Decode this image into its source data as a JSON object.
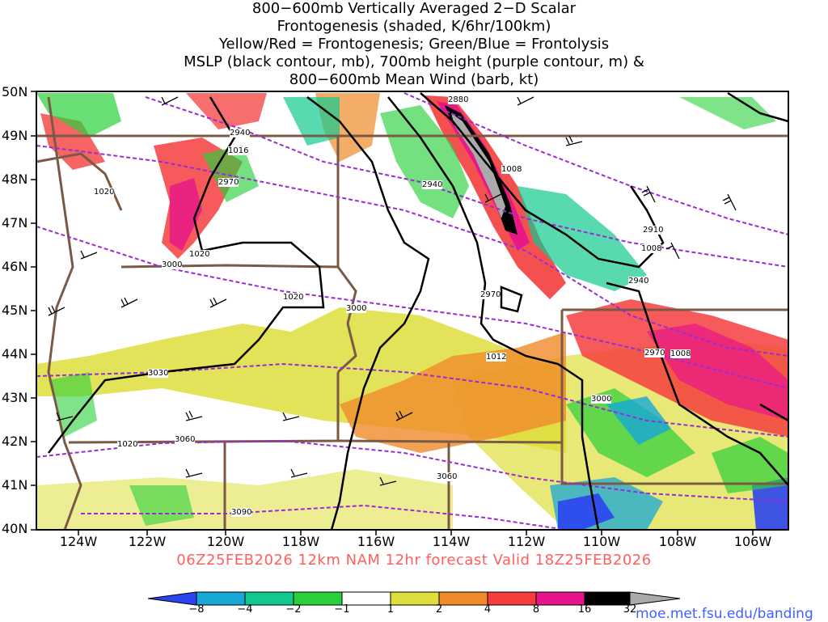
{
  "title": {
    "line1": "800−600mb Vertically Averaged 2−D Scalar",
    "line2": "Frontogenesis (shaded, K/6hr/100km)",
    "line3": "Yellow/Red = Frontogenesis;  Green/Blue = Frontolysis",
    "line4": "MSLP (black contour, mb), 700mb height (purple contour, m) &",
    "line5": "800−600mb Mean Wind (barb, kt)"
  },
  "map": {
    "lat_labels": [
      "50N",
      "49N",
      "48N",
      "47N",
      "46N",
      "45N",
      "44N",
      "43N",
      "42N",
      "41N",
      "40N"
    ],
    "lon_labels": [
      "124W",
      "122W",
      "120W",
      "118W",
      "116W",
      "114W",
      "112W",
      "110W",
      "108W",
      "106W"
    ],
    "mslp_labels": [
      "1016",
      "1020",
      "1020",
      "1020",
      "1012",
      "1008",
      "1008",
      "1008",
      "1020"
    ],
    "height_labels": [
      "2880",
      "2940",
      "2970",
      "2940",
      "3000",
      "2910",
      "2940",
      "2970",
      "3000",
      "2970",
      "3000",
      "3030",
      "3060",
      "3060",
      "3090"
    ]
  },
  "run_info": "06Z25FEB2026 12km NAM 12hr forecast Valid 18Z25FEB2026",
  "colorbar": {
    "ticks": [
      "−8",
      "−4",
      "−2",
      "−1",
      "1",
      "2",
      "4",
      "8",
      "16",
      "32"
    ],
    "colors": [
      "#2b44f0",
      "#17a8d8",
      "#11c98f",
      "#2ad03a",
      "#ffffff",
      "#dede3c",
      "#f08a2a",
      "#f43d3d",
      "#e8158a",
      "#000000",
      "#aaaaaa"
    ]
  },
  "credit": "moe.met.fsu.edu/banding"
}
